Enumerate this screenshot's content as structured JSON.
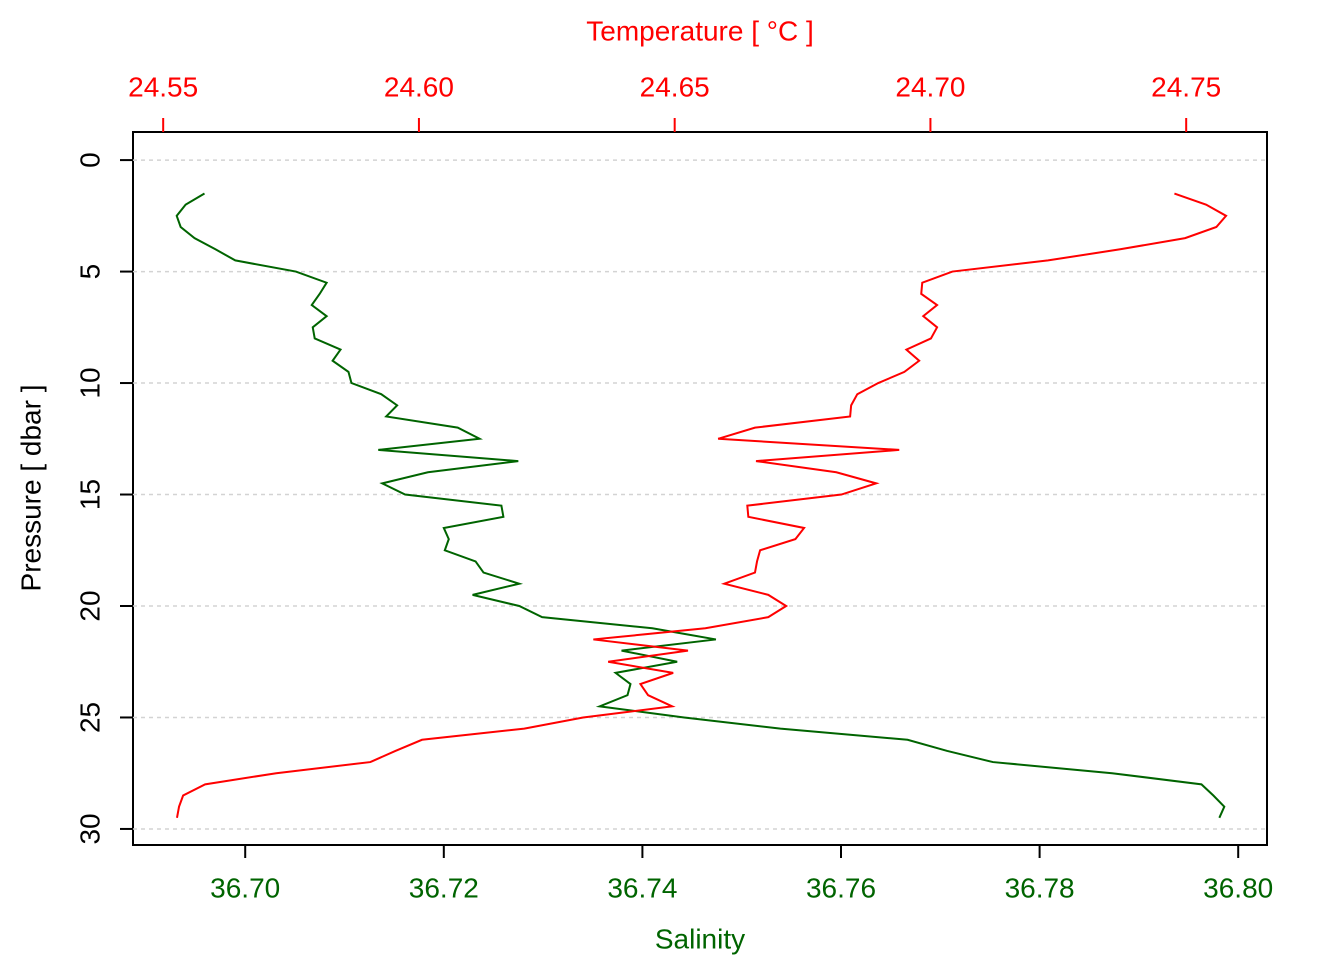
{
  "chart_data": {
    "type": "profile",
    "title": "Temperature [ °C ]",
    "xlabel": "Salinity",
    "ylabel": "Pressure [ dbar ]",
    "y": [
      1.5,
      2,
      2.5,
      3,
      3.5,
      4,
      4.5,
      5,
      5.5,
      6,
      6.5,
      7,
      7.5,
      8,
      8.5,
      9,
      9.5,
      10,
      10.5,
      11,
      11.5,
      12,
      12.5,
      13,
      13.5,
      14,
      14.5,
      15,
      15.5,
      16,
      16.5,
      17,
      17.5,
      18,
      18.5,
      19,
      19.5,
      20,
      20.5,
      21,
      21.5,
      22,
      22.5,
      23,
      23.5,
      24,
      24.5,
      25,
      25.5,
      26,
      26.5,
      27,
      27.5,
      28,
      28.5,
      29,
      29.5
    ],
    "series": [
      {
        "name": "Salinity",
        "color": "#006400",
        "axis": "x",
        "values": [
          36.6959,
          36.694,
          36.6931,
          36.6935,
          36.6949,
          36.697,
          36.699,
          36.7051,
          36.7082,
          36.7075,
          36.7067,
          36.7082,
          36.7068,
          36.707,
          36.7096,
          36.7088,
          36.7104,
          36.7107,
          36.7137,
          36.7153,
          36.7142,
          36.7214,
          36.7236,
          36.7134,
          36.7275,
          36.7184,
          36.7138,
          36.7161,
          36.7258,
          36.726,
          36.72,
          36.7205,
          36.7201,
          36.7232,
          36.724,
          36.7276,
          36.7229,
          36.7276,
          36.7299,
          36.741,
          36.7474,
          36.7379,
          36.7435,
          36.7373,
          36.7388,
          36.7385,
          36.7357,
          36.7442,
          36.7539,
          36.7667,
          36.7707,
          36.7753,
          36.7873,
          36.7963,
          36.7975,
          36.7986,
          36.7981
        ]
      },
      {
        "name": "Temperature",
        "color": "#ff0000",
        "axis": "x2",
        "values": [
          24.7477,
          24.7539,
          24.7578,
          24.7559,
          24.7498,
          24.7371,
          24.723,
          24.7043,
          24.6984,
          24.6982,
          24.7013,
          24.6986,
          24.7013,
          24.7001,
          24.6953,
          24.6978,
          24.6949,
          24.6898,
          24.6857,
          24.6845,
          24.6843,
          24.6657,
          24.6585,
          24.6939,
          24.6659,
          24.6816,
          24.6894,
          24.6826,
          24.6642,
          24.6644,
          24.6753,
          24.6736,
          24.6667,
          24.6661,
          24.6657,
          24.6597,
          24.6683,
          24.6718,
          24.6683,
          24.656,
          24.6341,
          24.6526,
          24.637,
          24.6497,
          24.6433,
          24.6448,
          24.6495,
          24.6321,
          24.6206,
          24.6006,
          24.5954,
          24.5905,
          24.5721,
          24.5582,
          24.5539,
          24.5531,
          24.5527
        ]
      }
    ],
    "xlim": [
      36.6887,
      36.8029
    ],
    "xticks": [
      {
        "value": 36.7,
        "label": "36.70"
      },
      {
        "value": 36.72,
        "label": "36.72"
      },
      {
        "value": 36.74,
        "label": "36.74"
      },
      {
        "value": 36.76,
        "label": "36.76"
      },
      {
        "value": 36.78,
        "label": "36.78"
      },
      {
        "value": 36.8,
        "label": "36.80"
      }
    ],
    "x2lim": [
      24.5441,
      24.7658
    ],
    "x2ticks": [
      24.55,
      {
        "value": 24.6,
        "label": "24.60"
      },
      24.65,
      {
        "value": 24.7,
        "label": "24.70"
      },
      24.75
    ],
    "ylim": [
      30.72,
      -1.26
    ],
    "yticks": [
      0,
      5,
      10,
      15,
      20,
      25,
      30
    ],
    "grid": true
  }
}
